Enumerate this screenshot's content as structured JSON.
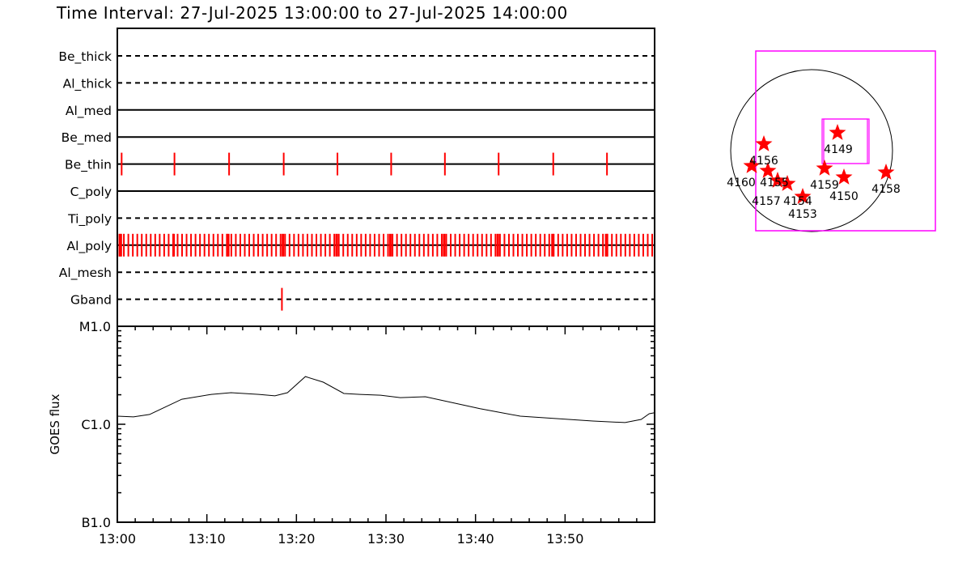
{
  "title": "Time Interval: 27-Jul-2025 13:00:00 to 27-Jul-2025 14:00:00",
  "colors": {
    "marks": "#ff0000",
    "fov": "#ff00ff",
    "axes": "#000000"
  },
  "chart_data": [
    {
      "type": "timeline",
      "description_of_rows": "filter usage",
      "xlim_minutes_after_13_00": [
        0,
        60
      ],
      "rows": [
        {
          "label": "Be_thick",
          "line": "dashed",
          "obs_minutes": []
        },
        {
          "label": "Al_thick",
          "line": "dashed",
          "obs_minutes": []
        },
        {
          "label": "Al_med",
          "line": "solid",
          "obs_minutes": []
        },
        {
          "label": "Be_med",
          "line": "solid",
          "obs_minutes": []
        },
        {
          "label": "Be_thin",
          "line": "solid",
          "obs_minutes": [
            0.3,
            6.2,
            12.3,
            18.4,
            24.4,
            30.4,
            36.4,
            42.4,
            48.5,
            54.5
          ]
        },
        {
          "label": "C_poly",
          "line": "solid",
          "obs_minutes": []
        },
        {
          "label": "Ti_poly",
          "line": "dashed",
          "obs_minutes": []
        },
        {
          "label": "Al_poly",
          "line": "solid",
          "obs_cadence_minutes": 0.5,
          "obs_range_minutes": [
            0,
            60
          ]
        },
        {
          "label": "Al_mesh",
          "line": "dashed",
          "obs_minutes": []
        },
        {
          "label": "Gband",
          "line": "dashed",
          "obs_minutes": [
            18.2
          ]
        }
      ]
    },
    {
      "type": "line",
      "ylabel": "GOES flux",
      "yscale": "log",
      "ylim": [
        1e-07,
        1e-05
      ],
      "ytick_labels": [
        "B1.0",
        "C1.0",
        "M1.0"
      ],
      "xtick_labels": [
        "13:00",
        "13:10",
        "13:20",
        "13:30",
        "13:40",
        "13:50"
      ],
      "x_minutes": [
        0,
        1.8,
        3.6,
        7.2,
        10.5,
        12.7,
        15.8,
        17.6,
        19.0,
        21.0,
        23.0,
        25.3,
        27.1,
        29.4,
        31.6,
        34.4,
        40.5,
        45.0,
        50.4,
        53.1,
        56.7,
        58.5,
        59.4,
        60
      ],
      "y_flux": [
        1.21e-06,
        1.19e-06,
        1.26e-06,
        1.8e-06,
        2.02e-06,
        2.1e-06,
        2.02e-06,
        1.95e-06,
        2.1e-06,
        3.07e-06,
        2.69e-06,
        2.06e-06,
        2.02e-06,
        1.98e-06,
        1.87e-06,
        1.91e-06,
        1.44e-06,
        1.21e-06,
        1.12e-06,
        1.08e-06,
        1.04e-06,
        1.12e-06,
        1.28e-06,
        1.31e-06
      ]
    },
    {
      "type": "scatter",
      "description_of_marks": "active regions on solar disk",
      "labels": [
        "4149",
        "4156",
        "4160",
        "4155",
        "4157",
        "4154",
        "4153",
        "4159",
        "4150",
        "4158"
      ]
    }
  ]
}
